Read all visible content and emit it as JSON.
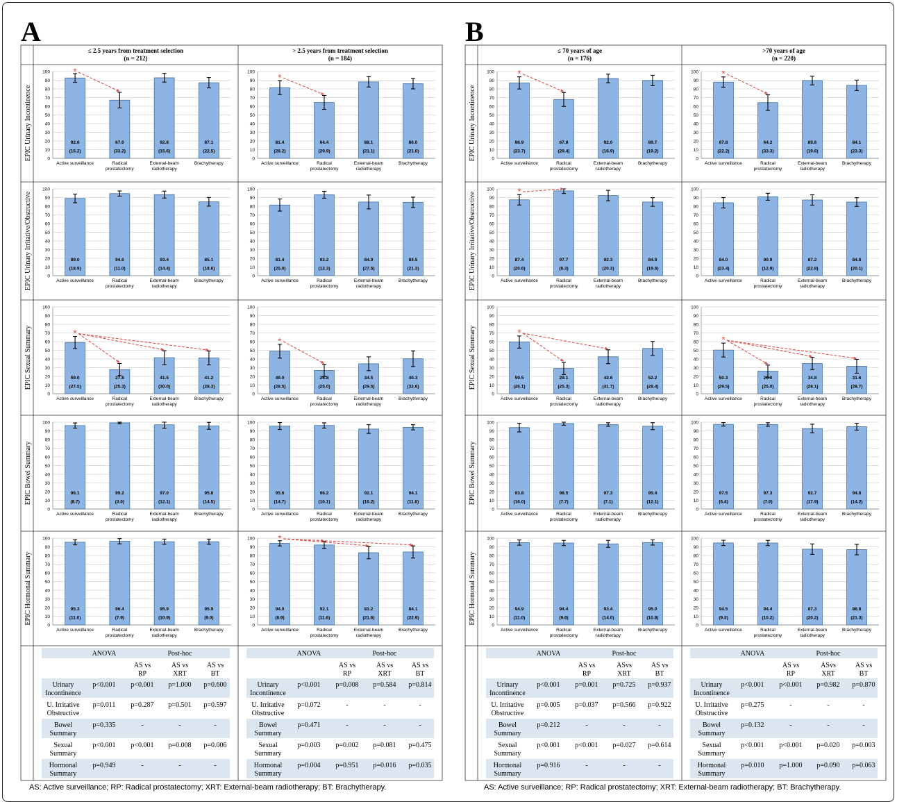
{
  "panels": [
    {
      "letter": "A",
      "footnote": "AS: Active surveillance; RP: Radical prostatectomy; XRT: External-beam radiotherapy; BT: Brachytherapy.",
      "columns": [
        {
          "title": "≤ 2.5 years from treatment selection",
          "n": "(n = 212)",
          "anova": {
            "header": {
              "anova": "ANOVA",
              "posthoc": "Post-hoc"
            },
            "subheaders": [
              [
                "AS vs",
                "RP"
              ],
              [
                "AS vs",
                "XRT"
              ],
              [
                "AS vs",
                "BT"
              ]
            ],
            "rows": [
              {
                "label": [
                  "Urinary",
                  "Incontinence"
                ],
                "values": [
                  "p<0.001",
                  "p<0.001",
                  "p=1.000",
                  "p=0.600"
                ]
              },
              {
                "label": [
                  "U. Irritative",
                  "Obstructive"
                ],
                "values": [
                  "p=0.011",
                  "p=0.287",
                  "p=0.501",
                  "p=0.597"
                ]
              },
              {
                "label": [
                  "Bowel",
                  "Summary"
                ],
                "values": [
                  "p=0.335",
                  "-",
                  "-",
                  "-"
                ]
              },
              {
                "label": [
                  "Sexual",
                  "Summary"
                ],
                "values": [
                  "p<0.001",
                  "p<0.001",
                  "p=0.008",
                  "p=0.006"
                ]
              },
              {
                "label": [
                  "Hormonal",
                  "Summary"
                ],
                "values": [
                  "p=0.949",
                  "-",
                  "-",
                  "-"
                ]
              }
            ]
          }
        },
        {
          "title": "> 2.5 years from treatment selection",
          "n": "(n = 184)",
          "anova": {
            "header": {
              "anova": "ANOVA",
              "posthoc": "Post-hoc"
            },
            "subheaders": [
              [
                "AS vs",
                "RP"
              ],
              [
                "AS vs",
                "XRT"
              ],
              [
                "AS vs",
                "BT"
              ]
            ],
            "rows": [
              {
                "label": [
                  "Urinary",
                  "Incontinence"
                ],
                "values": [
                  "p<0.001",
                  "p=0.008",
                  "p=0.584",
                  "p=0.814"
                ]
              },
              {
                "label": [
                  "U. Irritative",
                  "Obstructive"
                ],
                "values": [
                  "p=0.072",
                  "-",
                  "-",
                  "-"
                ]
              },
              {
                "label": [
                  "Bowel",
                  "Summary"
                ],
                "values": [
                  "p=0.471",
                  "-",
                  "-",
                  "-"
                ]
              },
              {
                "label": [
                  "Sexual",
                  "Summary"
                ],
                "values": [
                  "p=0.003",
                  "p=0.002",
                  "p=0.081",
                  "p=0.475"
                ]
              },
              {
                "label": [
                  "Hormonal",
                  "Summary"
                ],
                "values": [
                  "p=0.004",
                  "p=0.951",
                  "p=0.016",
                  "p=0.035"
                ]
              }
            ]
          }
        }
      ]
    },
    {
      "letter": "B",
      "footnote": "AS: Active surveillance; RP: Radical prostatectomy; XRT: External-beam radiotherapy; BT: Brachytherapy.",
      "columns": [
        {
          "title": "≤ 70 years of age",
          "n": "(n = 176)",
          "anova": {
            "header": {
              "anova": "ANOVA",
              "posthoc": "Post-hoc"
            },
            "subheaders": [
              [
                "AS vs",
                "RP"
              ],
              [
                "ASvs",
                "XRT"
              ],
              [
                "AS vs",
                "BT"
              ]
            ],
            "rows": [
              {
                "label": [
                  "Urinary",
                  "Incontinence"
                ],
                "values": [
                  "p<0.001",
                  "p=0.001",
                  "p=0.725",
                  "p=0.937"
                ]
              },
              {
                "label": [
                  "U. Irritative",
                  "Obstructive"
                ],
                "values": [
                  "p=0.005",
                  "p=0.037",
                  "p=0.566",
                  "p=0.922"
                ]
              },
              {
                "label": [
                  "Bowel",
                  "Summary"
                ],
                "values": [
                  "p=0.212",
                  "-",
                  "-",
                  "-"
                ]
              },
              {
                "label": [
                  "Sexual",
                  "Summary"
                ],
                "values": [
                  "p<0.001",
                  "p<0.001",
                  "p=0.027",
                  "p=0.614"
                ]
              },
              {
                "label": [
                  "Hormonal",
                  "Summary"
                ],
                "values": [
                  "p=0.916",
                  "-",
                  "-",
                  "-"
                ]
              }
            ]
          }
        },
        {
          "title": ">70 years of age",
          "n": "(n = 220)",
          "anova": {
            "header": {
              "anova": "ANOVA",
              "posthoc": "Post-hoc"
            },
            "subheaders": [
              [
                "AS vs",
                "RP"
              ],
              [
                "ASvs",
                "XRT"
              ],
              [
                "AS vs",
                "BT"
              ]
            ],
            "rows": [
              {
                "label": [
                  "Urinary",
                  "Incontinence"
                ],
                "values": [
                  "p<0.001",
                  "p<0.001",
                  "p=0.982",
                  "p=0.870"
                ]
              },
              {
                "label": [
                  "U. Irritative",
                  "Obstructive"
                ],
                "values": [
                  "p=0.275",
                  "-",
                  "-",
                  "-"
                ]
              },
              {
                "label": [
                  "Bowel",
                  "Summary"
                ],
                "values": [
                  "p=0.132",
                  "-",
                  "-",
                  "-"
                ]
              },
              {
                "label": [
                  "Sexual",
                  "Summary"
                ],
                "values": [
                  "p<0.001",
                  "p<0.001",
                  "p=0.020",
                  "p=0.003"
                ]
              },
              {
                "label": [
                  "Hormonal",
                  "Summary"
                ],
                "values": [
                  "p=0.010",
                  "p=1.000",
                  "p=0.090",
                  "p=0.063"
                ]
              }
            ]
          }
        }
      ]
    }
  ],
  "row_labels": [
    "EPIC Urinary Incontinence",
    "EPIC Urinary Irritative/Obstructive",
    "EPIC Sexual Summary",
    "EPIC Bowel Summary",
    "EPIC Hormonal Summary"
  ],
  "colors": {
    "bar": "#8EB4E3",
    "bar_border": "#41719C",
    "arrow": "#D9534F",
    "table_shade": "#DCE6F1",
    "grid": "#BFBFBF"
  },
  "chart_data": {
    "type": "bar",
    "categories": [
      [
        "Active surveillance"
      ],
      [
        "Radical",
        "prostatectomy"
      ],
      [
        "External-beam",
        "radiotherapy"
      ],
      [
        "Brachytherapy"
      ]
    ],
    "ylim": [
      0,
      100
    ],
    "yticks": [
      0,
      10,
      20,
      30,
      40,
      50,
      60,
      70,
      80,
      90,
      100
    ],
    "charts": [
      [
        {
          "means": [
            "92.6",
            "67.0",
            "92.8",
            "87.1"
          ],
          "sds": [
            "15.2",
            "33.2",
            "15.6",
            "22.5"
          ],
          "err": [
            5,
            9,
            5,
            6
          ],
          "arrows": [
            1
          ]
        },
        {
          "means": [
            "81.4",
            "64.4",
            "88.1",
            "86.0"
          ],
          "sds": [
            "28.2",
            "29.9",
            "21.1",
            "21.0"
          ],
          "err": [
            8,
            8,
            6,
            6
          ],
          "arrows": [
            1
          ]
        },
        {
          "means": [
            "86.9",
            "67.8",
            "92.0",
            "89.7"
          ],
          "sds": [
            "23.7",
            "29.4",
            "16.9",
            "19.2"
          ],
          "err": [
            7,
            8,
            5,
            6
          ],
          "arrows": [
            1
          ]
        },
        {
          "means": [
            "87.8",
            "64.2",
            "89.6",
            "84.1"
          ],
          "sds": [
            "22.2",
            "33.3",
            "19.6",
            "23.3"
          ],
          "err": [
            6,
            9,
            5,
            6
          ],
          "arrows": [
            1
          ]
        }
      ],
      [
        {
          "means": [
            "89.0",
            "94.6",
            "93.4",
            "85.1"
          ],
          "sds": [
            "18.9",
            "11.0",
            "14.4",
            "18.6"
          ],
          "err": [
            5,
            3,
            4,
            5
          ],
          "arrows": []
        },
        {
          "means": [
            "81.4",
            "93.2",
            "84.9",
            "84.5"
          ],
          "sds": [
            "25.0",
            "12.3",
            "27.5",
            "21.3"
          ],
          "err": [
            7,
            4,
            8,
            6
          ],
          "arrows": []
        },
        {
          "means": [
            "87.4",
            "97.7",
            "92.3",
            "84.9"
          ],
          "sds": [
            "20.6",
            "8.3",
            "20.3",
            "19.6"
          ],
          "err": [
            6,
            3,
            6,
            5
          ],
          "arrows": [
            1
          ]
        },
        {
          "means": [
            "84.0",
            "90.9",
            "87.2",
            "84.8"
          ],
          "sds": [
            "23.4",
            "12.9",
            "22.8",
            "20.1"
          ],
          "err": [
            6,
            4,
            6,
            5
          ],
          "arrows": []
        }
      ],
      [
        {
          "means": [
            "59.0",
            "27.8",
            "41.5",
            "41.2"
          ],
          "sds": [
            "27.5",
            "25.3",
            "30.0",
            "28.3"
          ],
          "err": [
            7,
            7,
            8,
            8
          ],
          "arrows": [
            1,
            2,
            3
          ]
        },
        {
          "means": [
            "49.0",
            "26.8",
            "34.5",
            "40.3"
          ],
          "sds": [
            "28.5",
            "25.0",
            "29.5",
            "32.6"
          ],
          "err": [
            8,
            7,
            8,
            9
          ],
          "arrows": [
            1
          ]
        },
        {
          "means": [
            "59.5",
            "29.1",
            "42.6",
            "52.2"
          ],
          "sds": [
            "26.1",
            "25.3",
            "31.7",
            "28.4"
          ],
          "err": [
            7,
            7,
            8,
            8
          ],
          "arrows": [
            1,
            2
          ]
        },
        {
          "means": [
            "50.3",
            "26.0",
            "34.8",
            "31.6"
          ],
          "sds": [
            "29.5",
            "25.0",
            "28.1",
            "28.7"
          ],
          "err": [
            8,
            7,
            7,
            8
          ],
          "arrows": [
            1,
            2,
            3
          ]
        }
      ],
      [
        {
          "means": [
            "96.1",
            "99.2",
            "97.0",
            "95.8"
          ],
          "sds": [
            "8.7",
            "3.0",
            "12.1",
            "14.5"
          ],
          "err": [
            3,
            1,
            4,
            4
          ],
          "arrows": []
        },
        {
          "means": [
            "95.6",
            "96.2",
            "92.1",
            "94.1"
          ],
          "sds": [
            "14.7",
            "10.1",
            "16.2",
            "11.6"
          ],
          "err": [
            4,
            3,
            5,
            3
          ],
          "arrows": []
        },
        {
          "means": [
            "93.8",
            "98.5",
            "97.3",
            "95.4"
          ],
          "sds": [
            "16.0",
            "7.7",
            "7.1",
            "12.1"
          ],
          "err": [
            5,
            2,
            2,
            4
          ],
          "arrows": []
        },
        {
          "means": [
            "97.5",
            "97.3",
            "92.7",
            "94.8"
          ],
          "sds": [
            "6.4",
            "7.0",
            "17.9",
            "14.2"
          ],
          "err": [
            2,
            2,
            5,
            4
          ],
          "arrows": []
        }
      ],
      [
        {
          "means": [
            "95.3",
            "96.4",
            "95.9",
            "95.9"
          ],
          "sds": [
            "11.0",
            "7.9",
            "10.9",
            "9.0"
          ],
          "err": [
            3,
            3,
            3,
            3
          ],
          "arrows": []
        },
        {
          "means": [
            "94.0",
            "92.1",
            "83.2",
            "84.1"
          ],
          "sds": [
            "8.9",
            "11.6",
            "21.6",
            "22.9"
          ],
          "err": [
            3,
            4,
            7,
            7
          ],
          "arrows": [
            1,
            2,
            3
          ]
        },
        {
          "means": [
            "94.9",
            "94.4",
            "93.4",
            "95.0"
          ],
          "sds": [
            "11.0",
            "9.8",
            "14.0",
            "10.8"
          ],
          "err": [
            3,
            3,
            4,
            3
          ],
          "arrows": []
        },
        {
          "means": [
            "94.5",
            "94.4",
            "87.3",
            "86.8"
          ],
          "sds": [
            "9.3",
            "10.2",
            "20.2",
            "21.3"
          ],
          "err": [
            3,
            3,
            6,
            6
          ],
          "arrows": []
        }
      ]
    ]
  }
}
